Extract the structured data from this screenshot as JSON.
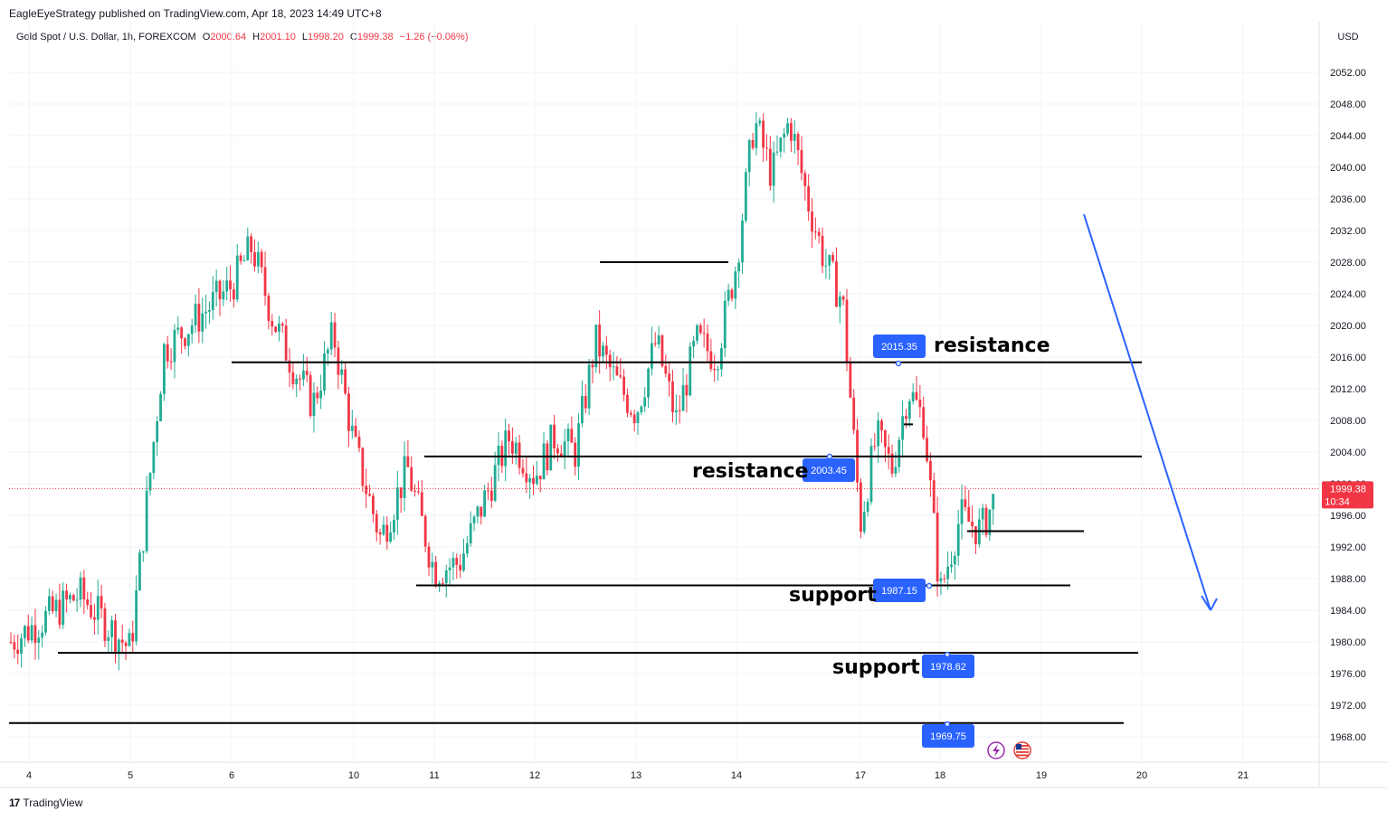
{
  "header": {
    "publisher_line": "EagleEyeStrategy published on TradingView.com, Apr 18, 2023 14:49 UTC+8"
  },
  "legend": {
    "symbol": "Gold Spot / U.S. Dollar, 1h, FOREXCOM",
    "o_label": "O",
    "o_value": "2000.64",
    "h_label": "H",
    "h_value": "2001.10",
    "l_label": "L",
    "l_value": "1998.20",
    "c_label": "C",
    "c_value": "1999.38",
    "change": "−1.26 (−0.06%)"
  },
  "footer": {
    "logo_text": "TradingView"
  },
  "colors": {
    "up": "#22ab94",
    "down": "#f23645",
    "badge": "#2962ff",
    "arrow": "#2962ff",
    "grid": "#f0f3fa"
  },
  "icons": [
    "flash-icon",
    "us-flag-icon"
  ],
  "chart_data": {
    "type": "candlestick",
    "currency_label": "USD",
    "y_ticks": [
      2052,
      2048,
      2044,
      2040,
      2036,
      2032,
      2028,
      2024,
      2020,
      2016,
      2012,
      2008,
      2004,
      2000,
      1996,
      1992,
      1988,
      1984,
      1980,
      1976,
      1972,
      1968
    ],
    "x_ticks": [
      "4",
      "5",
      "6",
      "10",
      "11",
      "12",
      "13",
      "14",
      "17",
      "18",
      "19",
      "20",
      "21"
    ],
    "last_price": {
      "value": 1999.38,
      "label": "1999.38",
      "countdown": "10:34"
    },
    "close_path": [
      {
        "x": "4",
        "y": 1980
      },
      {
        "x": "4",
        "y": 1986
      },
      {
        "x": "5",
        "y": 1979
      },
      {
        "x": "5",
        "y": 2017
      },
      {
        "x": "5",
        "y": 2021
      },
      {
        "x": "6",
        "y": 2025
      },
      {
        "x": "6",
        "y": 2030
      },
      {
        "x": "6",
        "y": 2021
      },
      {
        "x": "6",
        "y": 2015
      },
      {
        "x": "6",
        "y": 2010
      },
      {
        "x": "6",
        "y": 2019
      },
      {
        "x": "10",
        "y": 2005
      },
      {
        "x": "10",
        "y": 1993
      },
      {
        "x": "10",
        "y": 2002
      },
      {
        "x": "11",
        "y": 1989
      },
      {
        "x": "11",
        "y": 1990
      },
      {
        "x": "11",
        "y": 1998
      },
      {
        "x": "11",
        "y": 2006
      },
      {
        "x": "12",
        "y": 2001
      },
      {
        "x": "12",
        "y": 2006
      },
      {
        "x": "12",
        "y": 2004
      },
      {
        "x": "12",
        "y": 2018
      },
      {
        "x": "12",
        "y": 2013
      },
      {
        "x": "13",
        "y": 2009
      },
      {
        "x": "13",
        "y": 2018
      },
      {
        "x": "13",
        "y": 2008
      },
      {
        "x": "13",
        "y": 2018
      },
      {
        "x": "13",
        "y": 2016
      },
      {
        "x": "14",
        "y": 2028
      },
      {
        "x": "14",
        "y": 2046
      },
      {
        "x": "14",
        "y": 2039
      },
      {
        "x": "14",
        "y": 2046
      },
      {
        "x": "14",
        "y": 2036
      },
      {
        "x": "14",
        "y": 2028
      },
      {
        "x": "14",
        "y": 2023
      },
      {
        "x": "17",
        "y": 1995
      },
      {
        "x": "17",
        "y": 2006
      },
      {
        "x": "17",
        "y": 2002
      },
      {
        "x": "17",
        "y": 2012
      },
      {
        "x": "17",
        "y": 2008
      },
      {
        "x": "18",
        "y": 1986
      },
      {
        "x": "18",
        "y": 1996
      },
      {
        "x": "18",
        "y": 1994
      },
      {
        "x": "18",
        "y": 2000
      },
      {
        "x": "18",
        "y": 1999.38
      }
    ],
    "horizontal_lines": [
      {
        "from_x": "13",
        "to_x": "17",
        "price": 2028.0
      },
      {
        "from_x": "6",
        "to_x": "19",
        "price": 2015.35
      },
      {
        "from_x": "17",
        "to_x": "18",
        "price": 2007.5
      },
      {
        "from_x": "10",
        "to_x": "19",
        "price": 2003.45
      },
      {
        "from_x": "18",
        "to_x": "19",
        "price": 1994.0
      },
      {
        "from_x": "11",
        "to_x": "19",
        "price": 1987.15
      },
      {
        "from_x": "4",
        "to_x": "19",
        "price": 1978.62
      },
      {
        "from_x": "4",
        "to_x": "19",
        "price": 1969.75
      }
    ],
    "price_badges": [
      "2015.35",
      "2003.45",
      "1987.15",
      "1978.62",
      "1969.75"
    ],
    "annotations": [
      "resistance",
      "resistance",
      "support",
      "support"
    ],
    "arrow": {
      "from": {
        "x": "19",
        "y": 2035
      },
      "to": {
        "x": "20",
        "y": 1985
      },
      "direction": "down"
    }
  }
}
